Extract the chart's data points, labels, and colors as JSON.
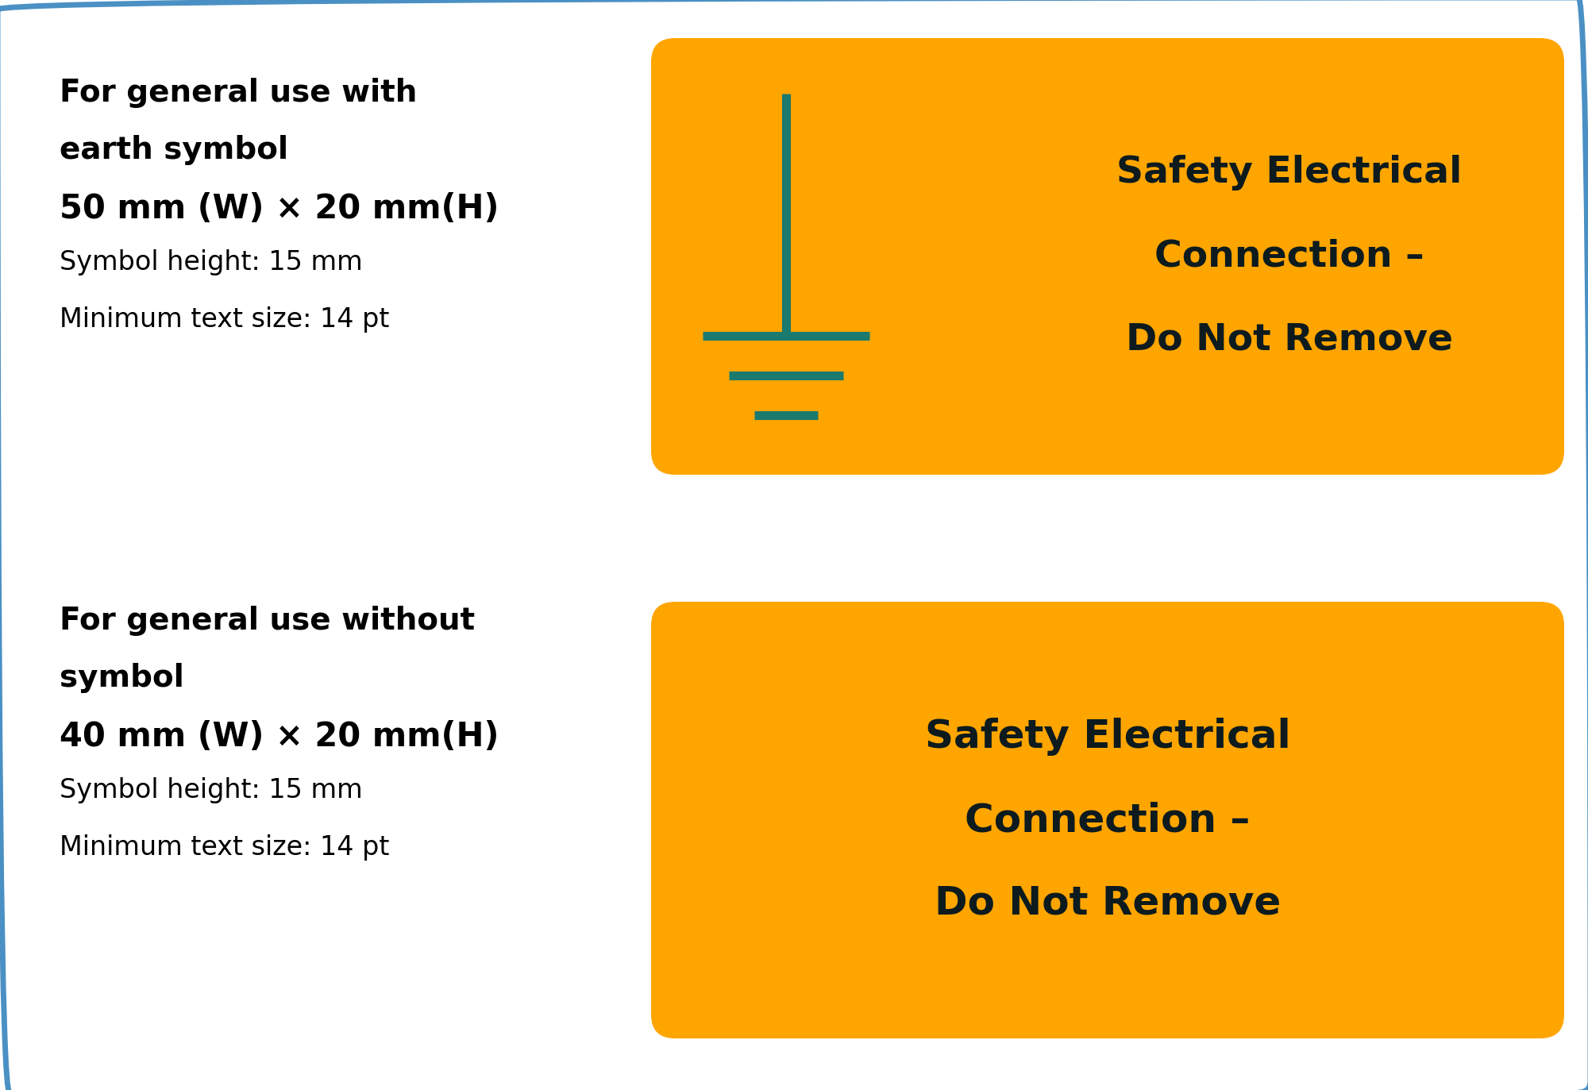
{
  "bg_color": "#ffffff",
  "border_color": "#4a90c4",
  "border_linewidth": 5,
  "orange_color": "#FFA500",
  "teal_color": "#1a7a6e",
  "dark_text_color": "#0d1b1e",
  "black_text": "#000000",
  "fig_w": 20.0,
  "fig_h": 13.73,
  "label1": {
    "desc_lines": [
      [
        "For general use with",
        true,
        28
      ],
      [
        "earth symbol",
        true,
        28
      ],
      [
        "50 mm (W) × 20 mm(H)",
        true,
        30
      ],
      [
        "Symbol height: 15 mm",
        false,
        24
      ],
      [
        "Minimum text size: 14 pt",
        false,
        24
      ]
    ],
    "box_text": [
      "Safety Electrical",
      "Connection –",
      "Do Not Remove"
    ],
    "has_symbol": true
  },
  "label2": {
    "desc_lines": [
      [
        "For general use without",
        true,
        28
      ],
      [
        "symbol",
        true,
        28
      ],
      [
        "40 mm (W) × 20 mm(H)",
        true,
        30
      ],
      [
        "Symbol height: 15 mm",
        false,
        24
      ],
      [
        "Minimum text size: 14 pt",
        false,
        24
      ]
    ],
    "box_text": [
      "Safety Electrical",
      "Connection –",
      "Do Not Remove"
    ],
    "has_symbol": false
  }
}
